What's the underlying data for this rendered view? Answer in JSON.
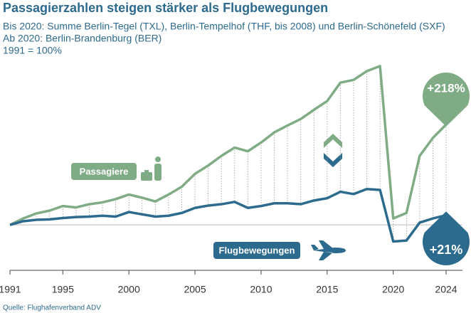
{
  "chart_data": {
    "type": "line",
    "title": "Passagierzahlen steigen stärker als Flugbewegungen",
    "subtitle": [
      "Bis 2020: Summe Berlin-Tegel (TXL), Berlin-Tempelhof (THF, bis 2008) und Berlin-Schönefeld (SXF)",
      "Ab 2020: Berlin-Brandenburg (BER)",
      "1991 = 100%"
    ],
    "source": "Quelle: Flughafenverband ADV",
    "x": [
      1991,
      1992,
      1993,
      1994,
      1995,
      1996,
      1997,
      1998,
      1999,
      2000,
      2001,
      2002,
      2003,
      2004,
      2005,
      2006,
      2007,
      2008,
      2009,
      2010,
      2011,
      2012,
      2013,
      2014,
      2015,
      2016,
      2017,
      2018,
      2019,
      2020,
      2021,
      2022,
      2023,
      2024
    ],
    "xlim": [
      1991,
      2024
    ],
    "xticks": [
      1991,
      1995,
      2000,
      2005,
      2010,
      2015,
      2020,
      2024
    ],
    "ylim": [
      40,
      460
    ],
    "series": [
      {
        "name": "Passagiere",
        "color": "#7fab85",
        "values": [
          100,
          114,
          125,
          131,
          141,
          138,
          145,
          149,
          156,
          166,
          159,
          151,
          166,
          183,
          211,
          229,
          250,
          268,
          260,
          279,
          301,
          316,
          330,
          350,
          369,
          409,
          415,
          434,
          445,
          114,
          126,
          250,
          289,
          318
        ],
        "end_label": "+218%"
      },
      {
        "name": "Flugbewegungen",
        "color": "#2c6a8e",
        "values": [
          100,
          108,
          111,
          112,
          115,
          117,
          118,
          120,
          118,
          128,
          123,
          118,
          120,
          126,
          137,
          142,
          145,
          150,
          137,
          141,
          147,
          147,
          145,
          153,
          158,
          172,
          167,
          178,
          176,
          64,
          66,
          105,
          114,
          121
        ],
        "end_label": "+21%"
      }
    ]
  }
}
